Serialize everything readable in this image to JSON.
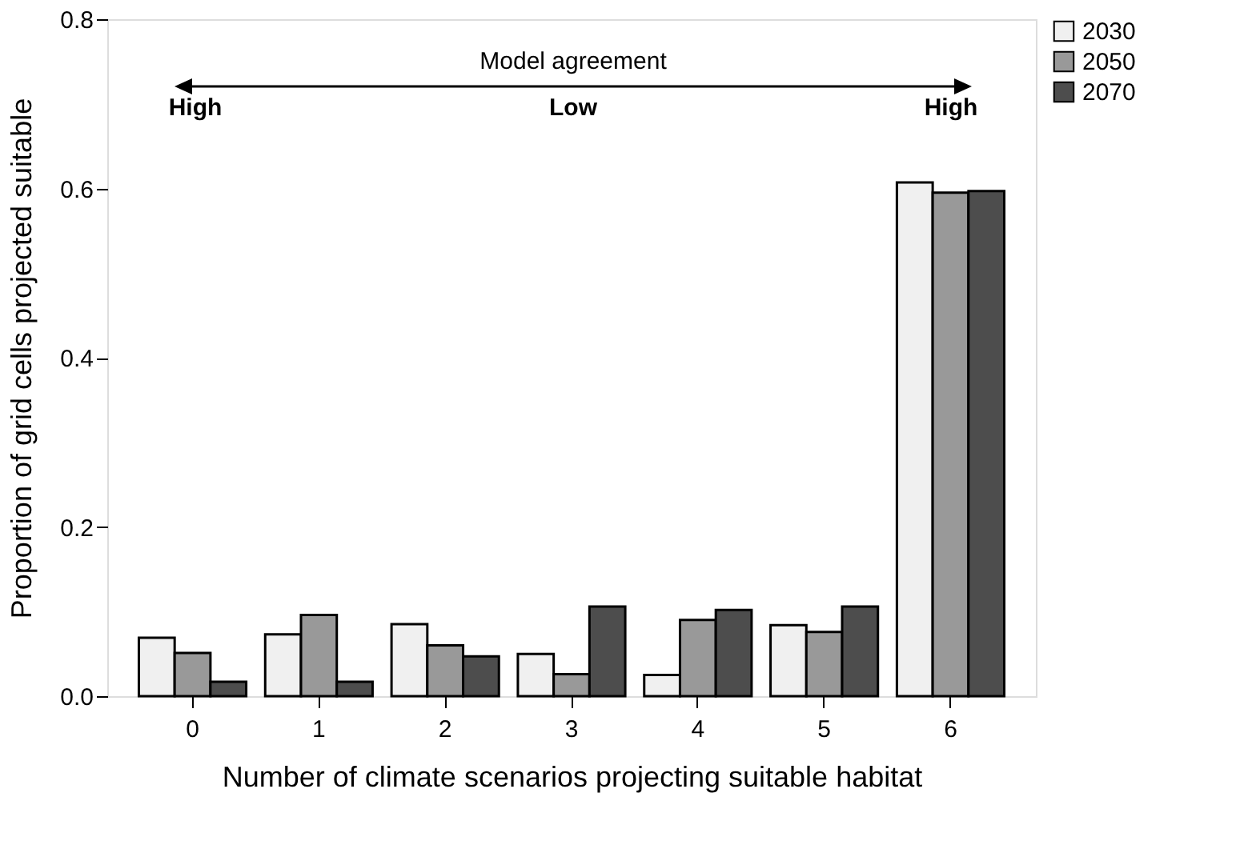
{
  "chart_data": {
    "type": "bar",
    "xlabel": "Number of climate scenarios projecting suitable habitat",
    "ylabel": "Proportion of grid cells projected suitable",
    "categories": [
      "0",
      "1",
      "2",
      "3",
      "4",
      "5",
      "6"
    ],
    "series": [
      {
        "name": "2030",
        "color": "#f0f0f0",
        "values": [
          0.069,
          0.073,
          0.085,
          0.05,
          0.025,
          0.084,
          0.607
        ]
      },
      {
        "name": "2050",
        "color": "#999999",
        "values": [
          0.051,
          0.096,
          0.06,
          0.026,
          0.09,
          0.076,
          0.595
        ]
      },
      {
        "name": "2070",
        "color": "#4d4d4d",
        "values": [
          0.017,
          0.017,
          0.047,
          0.106,
          0.102,
          0.106,
          0.597
        ]
      }
    ],
    "ylim": [
      0,
      0.8
    ],
    "yticks": [
      {
        "value": 0,
        "label": "0.0"
      },
      {
        "value": 0.2,
        "label": "0.2"
      },
      {
        "value": 0.4,
        "label": "0.4"
      },
      {
        "value": 0.6,
        "label": "0.6"
      },
      {
        "value": 0.8,
        "label": "0.8"
      }
    ],
    "annotations": [
      "Model agreement",
      "High",
      "Low",
      "High"
    ],
    "grid": false,
    "legend": "top right"
  }
}
